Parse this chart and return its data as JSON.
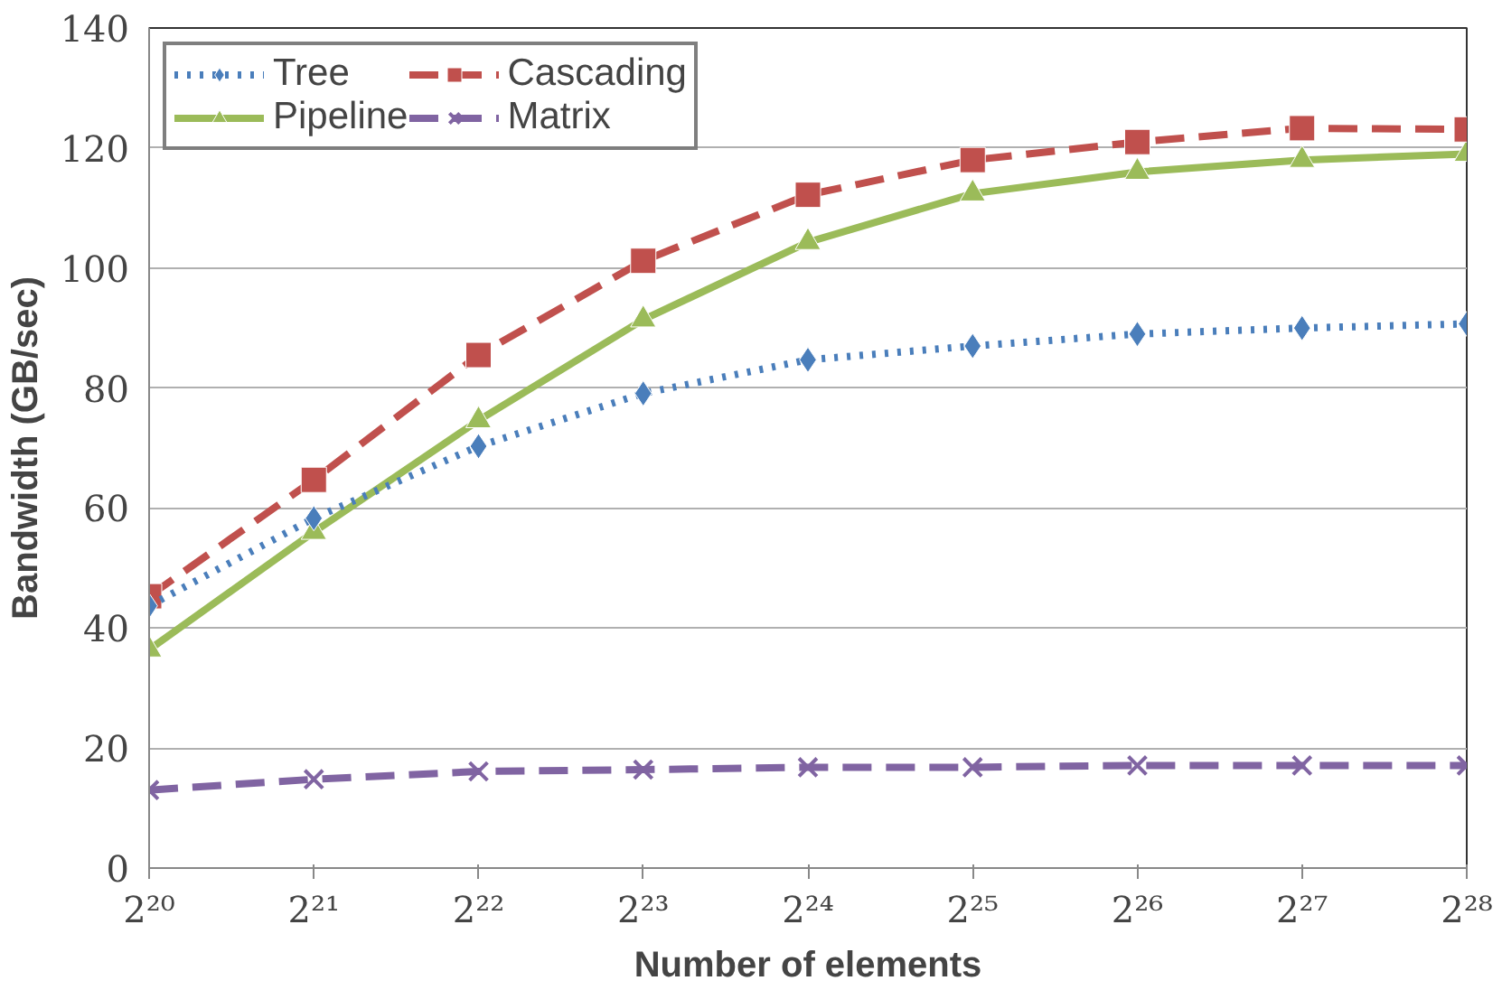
{
  "chart_data": {
    "type": "line",
    "xlabel": "Number of elements",
    "ylabel": "Bandwidth (GB/sec)",
    "categories": [
      "2²⁰",
      "2²¹",
      "2²²",
      "2²³",
      "2²⁴",
      "2²⁵",
      "2²⁶",
      "2²⁷",
      "2²⁸"
    ],
    "ylim": [
      0,
      140
    ],
    "yticks": [
      0,
      20,
      40,
      60,
      80,
      100,
      120,
      140
    ],
    "grid": "y",
    "legend": "top left",
    "series": [
      {
        "name": "Tree",
        "color": "#4a7ebb",
        "marker": "diamond",
        "line_style": "dotted",
        "values": [
          43.7,
          58.3,
          70.3,
          79.1,
          84.7,
          87,
          89,
          90,
          90.7
        ]
      },
      {
        "name": "Cascading",
        "color": "#c0504d",
        "marker": "square",
        "line_style": "dashed",
        "values": [
          45.3,
          64.7,
          85.5,
          101.2,
          112.2,
          118,
          121,
          123.3,
          123.1
        ]
      },
      {
        "name": "Pipeline",
        "color": "#9bbb59",
        "marker": "triangle",
        "line_style": "solid",
        "values": [
          36.4,
          56,
          74.6,
          91.4,
          104.3,
          112.4,
          116,
          118,
          119
        ]
      },
      {
        "name": "Matrix",
        "color": "#8064a2",
        "marker": "cross",
        "line_style": "dashed",
        "values": [
          13,
          14.8,
          16.1,
          16.4,
          16.8,
          16.8,
          17.1,
          17.1,
          17.1
        ]
      }
    ]
  }
}
